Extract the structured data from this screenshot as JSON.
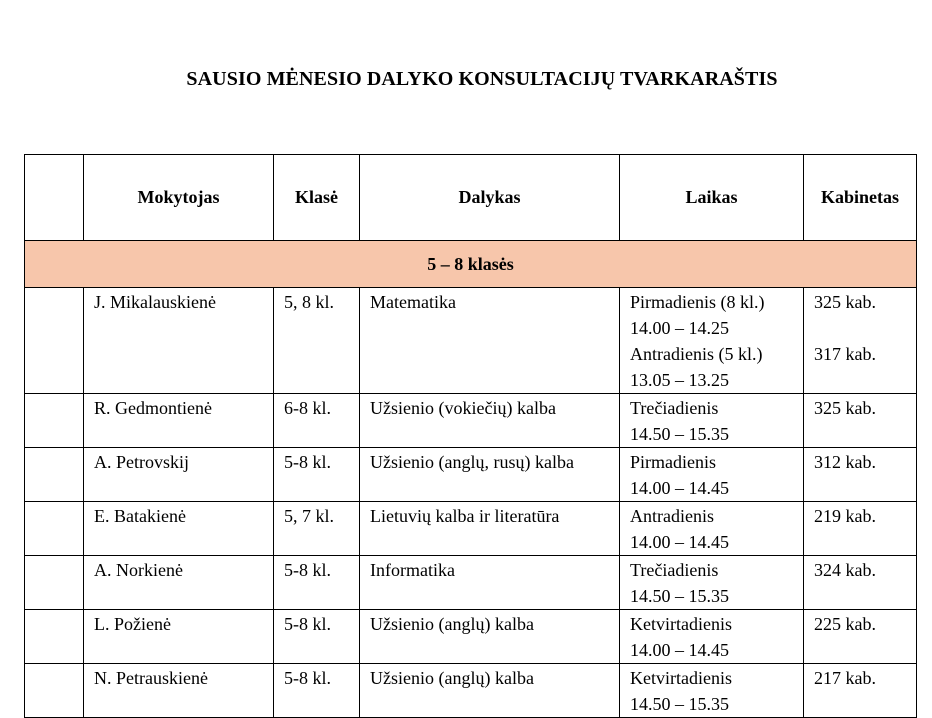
{
  "title": "SAUSIO MĖNESIO DALYKO KONSULTACIJŲ TVARKARAŠTIS",
  "table": {
    "headers": [
      "",
      "Mokytojas",
      "Klasė",
      "Dalykas",
      "Laikas",
      "Kabinetas"
    ],
    "section": "5 – 8 klasės",
    "section_color": "#f7c6ab",
    "rows": [
      {
        "teacher": "J. Mikalauskienė",
        "class": "5, 8 kl.",
        "subject": "Matematika",
        "time": [
          "Pirmadienis (8 kl.)",
          "14.00 – 14.25",
          "Antradienis (5 kl.)",
          "13.05 – 13.25"
        ],
        "room": [
          "325 kab.",
          "",
          "317 kab."
        ]
      },
      {
        "teacher": "R. Gedmontienė",
        "class": "6-8 kl.",
        "subject": "Užsienio (vokiečių) kalba",
        "time": [
          "Trečiadienis",
          "14.50 – 15.35"
        ],
        "room": [
          "325 kab."
        ]
      },
      {
        "teacher": "A. Petrovskij",
        "class": "5-8 kl.",
        "subject": "Užsienio (anglų, rusų) kalba",
        "time": [
          "Pirmadienis",
          "14.00 – 14.45"
        ],
        "room": [
          "312 kab."
        ]
      },
      {
        "teacher": "E. Batakienė",
        "class": "5, 7 kl.",
        "subject": "Lietuvių kalba ir literatūra",
        "time": [
          "Antradienis",
          "14.00 – 14.45"
        ],
        "room": [
          "219 kab."
        ]
      },
      {
        "teacher": "A. Norkienė",
        "class": "5-8 kl.",
        "subject": "Informatika",
        "time": [
          "Trečiadienis",
          "14.50 – 15.35"
        ],
        "room": [
          "324 kab."
        ]
      },
      {
        "teacher": "L. Požienė",
        "class": "5-8 kl.",
        "subject": "Užsienio (anglų) kalba",
        "time": [
          "Ketvirtadienis",
          "14.00 – 14.45"
        ],
        "room": [
          "225 kab."
        ]
      },
      {
        "teacher": "N. Petrauskienė",
        "class": "5-8 kl.",
        "subject": "Užsienio (anglų) kalba",
        "time": [
          "Ketvirtadienis",
          "14.50 – 15.35"
        ],
        "room": [
          "217 kab."
        ]
      }
    ]
  }
}
